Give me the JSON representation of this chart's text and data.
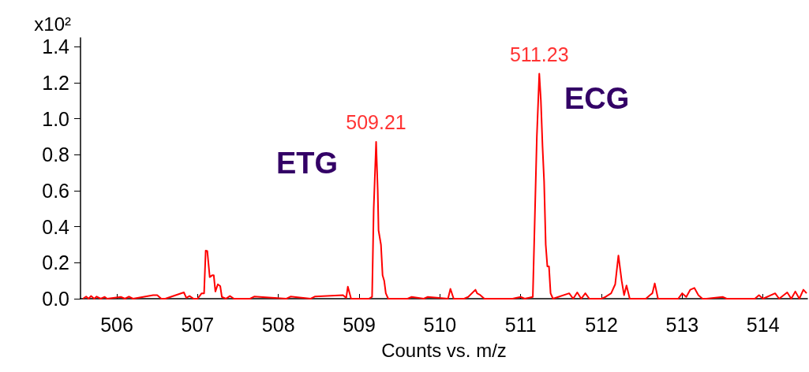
{
  "chart_data": {
    "type": "line",
    "xlabel": "Counts vs. m/z",
    "ylabel": "x10²",
    "xlim": [
      505.55,
      514.55
    ],
    "ylim": [
      0,
      1.45
    ],
    "xticks": [
      506,
      507,
      508,
      509,
      510,
      511,
      512,
      513,
      514
    ],
    "yticks": [
      {
        "value": 0,
        "label": "0.0"
      },
      {
        "value": 0.2,
        "label": "0.2"
      },
      {
        "value": 0.4,
        "label": "0.4"
      },
      {
        "value": 0.6,
        "label": "0.6"
      },
      {
        "value": 0.8,
        "label": "0.8"
      },
      {
        "value": 1.0,
        "label": "1.0"
      },
      {
        "value": 1.2,
        "label": "1.2"
      },
      {
        "value": 1.4,
        "label": "1.4"
      }
    ],
    "grid": false,
    "marker": "none",
    "line_style": "solid",
    "series": [
      {
        "color": "#ff0000",
        "x": [
          505.58,
          505.62,
          505.65,
          505.68,
          505.72,
          505.75,
          505.8,
          505.85,
          505.88,
          506.05,
          506.1,
          506.15,
          506.2,
          506.45,
          506.5,
          506.55,
          506.6,
          506.83,
          506.86,
          506.9,
          506.95,
          507.0,
          507.05,
          507.08,
          507.1,
          507.12,
          507.15,
          507.18,
          507.2,
          507.22,
          507.25,
          507.28,
          507.3,
          507.35,
          507.4,
          507.45,
          507.65,
          507.7,
          508.1,
          508.15,
          508.4,
          508.45,
          508.8,
          508.84,
          508.86,
          508.9,
          509.12,
          509.16,
          509.18,
          509.21,
          509.23,
          509.24,
          509.27,
          509.29,
          509.31,
          509.33,
          509.36,
          509.6,
          509.65,
          509.8,
          509.85,
          510.1,
          510.13,
          510.17,
          510.3,
          510.35,
          510.44,
          510.46,
          510.5,
          510.55,
          510.9,
          511.0,
          511.05,
          511.15,
          511.2,
          511.23,
          511.25,
          511.27,
          511.29,
          511.31,
          511.33,
          511.35,
          511.37,
          511.4,
          511.6,
          511.65,
          511.7,
          511.75,
          511.8,
          511.85,
          512.0,
          512.05,
          512.12,
          512.17,
          512.21,
          512.25,
          512.28,
          512.31,
          512.35,
          512.55,
          512.6,
          512.63,
          512.66,
          512.7,
          512.95,
          513.0,
          513.05,
          513.1,
          513.15,
          513.2,
          513.25,
          513.3,
          513.5,
          513.55,
          513.9,
          513.95,
          514.0,
          514.15,
          514.2,
          514.3,
          514.35,
          514.4,
          514.45,
          514.5,
          514.54
        ],
        "values": [
          0,
          0.012,
          0,
          0.015,
          0,
          0.012,
          0,
          0.01,
          0,
          0.01,
          0,
          0.012,
          0,
          0.02,
          0.02,
          0,
          0,
          0.035,
          0.005,
          0.015,
          0,
          0,
          0.03,
          0.03,
          0.267,
          0.265,
          0.12,
          0.13,
          0.13,
          0.04,
          0.08,
          0.07,
          0.01,
          0,
          0.015,
          0,
          0,
          0.012,
          0,
          0.012,
          0,
          0.012,
          0.02,
          0.005,
          0.067,
          0,
          0,
          0.01,
          0.5,
          0.872,
          0.6,
          0.38,
          0.3,
          0.13,
          0.1,
          0.03,
          0,
          0,
          0.01,
          0,
          0.01,
          0,
          0.055,
          0,
          0,
          0.01,
          0.05,
          0.03,
          0.02,
          0,
          0,
          0.01,
          0,
          0.01,
          0.9,
          1.251,
          1.1,
          0.85,
          0.65,
          0.3,
          0.18,
          0.18,
          0.03,
          0,
          0.03,
          0,
          0.035,
          0,
          0.03,
          0,
          0,
          0.01,
          0.03,
          0.08,
          0.24,
          0.1,
          0.02,
          0.073,
          0,
          0,
          0.02,
          0.03,
          0.085,
          0,
          0,
          0.03,
          0.01,
          0.05,
          0.06,
          0.02,
          0,
          0,
          0.01,
          0,
          0,
          0.02,
          0,
          0.03,
          0,
          0.035,
          0,
          0.04,
          0,
          0.05,
          0.03
        ]
      }
    ],
    "annotations": [
      {
        "text": "509.21",
        "x": 509.21,
        "y": 0.872
      },
      {
        "text": "511.23",
        "x": 511.23,
        "y": 1.251
      },
      "ETG",
      "ECG"
    ]
  }
}
